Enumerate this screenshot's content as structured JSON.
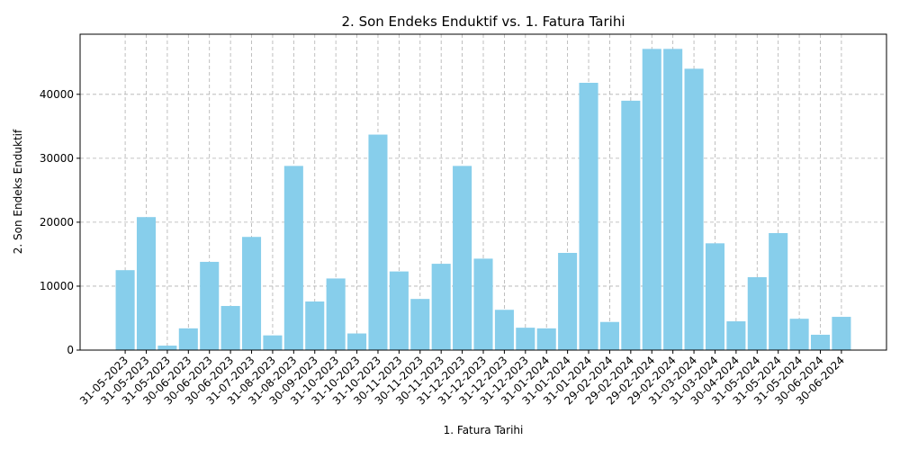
{
  "chart_data": {
    "type": "bar",
    "title": "2. Son Endeks Enduktif vs. 1. Fatura Tarihi",
    "x_label": "1. Fatura Tarihi",
    "y_label": "2. Son Endeks Enduktif",
    "categories": [
      "31-05-2023",
      "31-05-2023",
      "31-05-2023",
      "30-06-2023",
      "30-06-2023",
      "30-06-2023",
      "31-07-2023",
      "31-08-2023",
      "31-08-2023",
      "30-09-2023",
      "31-10-2023",
      "31-10-2023",
      "31-10-2023",
      "30-11-2023",
      "30-11-2023",
      "30-11-2023",
      "31-12-2023",
      "31-12-2023",
      "31-12-2023",
      "31-12-2023",
      "31-01-2024",
      "31-01-2024",
      "31-01-2024",
      "29-02-2024",
      "29-02-2024",
      "29-02-2024",
      "29-02-2024",
      "31-03-2024",
      "31-03-2024",
      "30-04-2024",
      "31-05-2024",
      "31-05-2024",
      "31-05-2024",
      "30-06-2024",
      "30-06-2024"
    ],
    "values": [
      12500,
      20800,
      700,
      3400,
      13800,
      6900,
      17700,
      2300,
      28800,
      7600,
      11200,
      2600,
      33700,
      12300,
      8000,
      13500,
      28800,
      14300,
      6300,
      3500,
      3400,
      15200,
      41800,
      4400,
      39000,
      47100,
      47100,
      44000,
      16700,
      4500,
      11400,
      18300,
      4900,
      2400,
      5200
    ],
    "color": "#87ceeb",
    "ylim": [
      0,
      49400
    ],
    "yticks": [
      0,
      10000,
      20000,
      30000,
      40000
    ],
    "grid": true
  }
}
